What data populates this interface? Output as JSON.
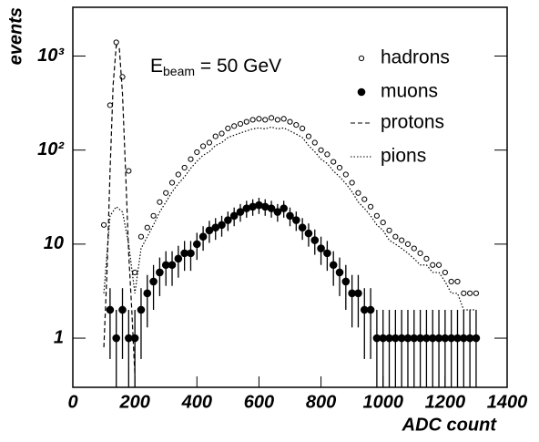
{
  "chart_data": {
    "type": "scatter",
    "x_label": "ADC count",
    "y_label": "events",
    "annotation": {
      "base": "E",
      "sub": "beam",
      "rest": " = 50 GeV"
    },
    "xlim": [
      0,
      1400
    ],
    "xticks": [
      0,
      200,
      400,
      600,
      800,
      1000,
      1200,
      1400
    ],
    "ylim": [
      0.3,
      3300
    ],
    "log_y": true,
    "yticks": [
      1,
      10,
      {
        "value": 100,
        "label": "10²"
      },
      {
        "value": 1000,
        "label": "10³"
      }
    ],
    "legend": "upper right",
    "series": [
      {
        "name": "hadrons",
        "color": "#000000",
        "marker": "open",
        "x": [
          100,
          120,
          140,
          160,
          180,
          200,
          220,
          240,
          260,
          280,
          300,
          320,
          340,
          360,
          380,
          400,
          420,
          440,
          460,
          480,
          500,
          520,
          540,
          560,
          580,
          600,
          620,
          640,
          660,
          680,
          700,
          720,
          740,
          760,
          780,
          800,
          820,
          840,
          860,
          880,
          900,
          920,
          940,
          960,
          980,
          1000,
          1020,
          1040,
          1060,
          1080,
          1100,
          1120,
          1140,
          1160,
          1180,
          1200,
          1220,
          1240,
          1260,
          1280,
          1300
        ],
        "values": [
          16,
          300,
          1400,
          600,
          60,
          5,
          12,
          15,
          20,
          28,
          35,
          45,
          55,
          65,
          80,
          95,
          110,
          120,
          140,
          150,
          170,
          180,
          190,
          200,
          210,
          215,
          210,
          220,
          210,
          215,
          200,
          185,
          170,
          140,
          120,
          100,
          90,
          75,
          65,
          55,
          45,
          35,
          30,
          25,
          20,
          17,
          14,
          12,
          11,
          10,
          9,
          8,
          7,
          6,
          6,
          5,
          4,
          4,
          3,
          3,
          3
        ]
      },
      {
        "name": "muons",
        "color": "#000000",
        "marker": "filled",
        "x": [
          120,
          140,
          160,
          180,
          200,
          220,
          240,
          260,
          280,
          300,
          320,
          340,
          360,
          380,
          400,
          420,
          440,
          460,
          480,
          500,
          520,
          540,
          560,
          580,
          600,
          620,
          640,
          660,
          680,
          700,
          720,
          740,
          760,
          780,
          800,
          820,
          840,
          860,
          880,
          900,
          920,
          940,
          960,
          980,
          1000,
          1020,
          1040,
          1060,
          1080,
          1100,
          1120,
          1140,
          1160,
          1180,
          1200,
          1220,
          1240,
          1260,
          1280,
          1300
        ],
        "values": [
          2,
          1,
          2,
          1,
          1,
          2,
          3,
          4,
          5,
          6,
          6,
          7,
          8,
          8,
          10,
          12,
          14,
          15,
          16,
          18,
          20,
          22,
          24,
          25,
          26,
          25,
          24,
          22,
          24,
          20,
          18,
          15,
          13,
          11,
          9,
          8,
          6,
          5,
          4,
          3,
          3,
          2,
          2,
          1,
          1,
          1,
          1,
          1,
          1,
          1,
          1,
          1,
          1,
          1,
          1,
          1,
          1,
          1,
          1,
          1
        ],
        "errors": [
          1.4,
          1,
          1.4,
          1,
          1,
          1.4,
          1.7,
          2,
          2.2,
          2.4,
          2.4,
          2.6,
          2.8,
          2.8,
          3.2,
          3.5,
          3.7,
          3.9,
          4,
          4.2,
          4.5,
          4.7,
          4.9,
          5,
          5.1,
          5,
          4.9,
          4.7,
          4.9,
          4.5,
          4.2,
          3.9,
          3.6,
          3.3,
          3,
          2.8,
          2.4,
          2.2,
          2,
          1.7,
          1.7,
          1.4,
          1.4,
          1,
          1,
          1,
          1,
          1,
          1,
          1,
          1,
          1,
          1,
          1,
          1,
          1,
          1,
          1,
          1,
          1
        ]
      },
      {
        "name": "protons",
        "color": "#000000",
        "line": "dashed",
        "x": [
          100,
          110,
          120,
          130,
          140,
          150,
          160,
          170,
          180,
          190,
          200
        ],
        "values": [
          0.8,
          5,
          60,
          500,
          1300,
          1200,
          400,
          60,
          8,
          2,
          0.4
        ]
      },
      {
        "name": "pions",
        "color": "#000000",
        "line": "dotted",
        "x": [
          100,
          120,
          140,
          160,
          180,
          200,
          220,
          240,
          260,
          280,
          300,
          320,
          340,
          360,
          380,
          400,
          420,
          440,
          460,
          480,
          500,
          520,
          540,
          560,
          580,
          600,
          620,
          640,
          660,
          680,
          700,
          720,
          740,
          760,
          780,
          800,
          820,
          840,
          860,
          880,
          900,
          920,
          940,
          960,
          980,
          1000,
          1020,
          1040,
          1060,
          1080,
          1100,
          1120,
          1140,
          1160,
          1180,
          1200,
          1220,
          1240,
          1260,
          1280,
          1300
        ],
        "values": [
          3,
          20,
          25,
          22,
          10,
          3,
          9,
          12,
          16,
          22,
          28,
          36,
          44,
          52,
          64,
          76,
          88,
          96,
          112,
          120,
          136,
          144,
          152,
          160,
          168,
          172,
          168,
          176,
          168,
          172,
          160,
          148,
          136,
          112,
          96,
          80,
          72,
          60,
          52,
          44,
          36,
          28,
          24,
          20,
          16,
          14,
          11,
          10,
          9,
          8,
          7,
          6,
          6,
          5,
          5,
          4,
          3,
          3,
          2,
          2,
          2
        ]
      }
    ]
  }
}
